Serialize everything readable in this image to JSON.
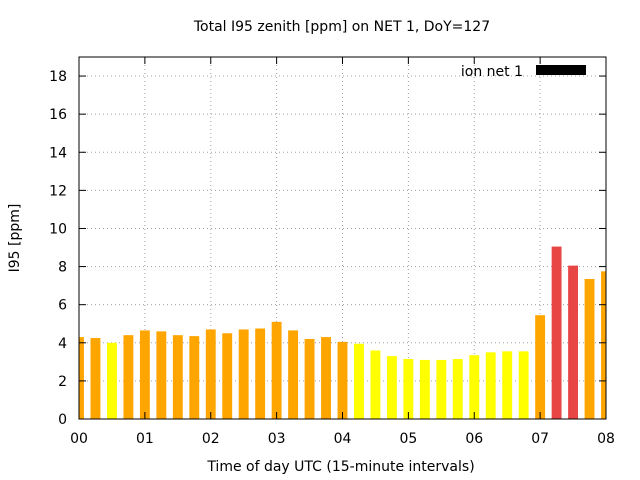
{
  "chart_data": {
    "type": "bar",
    "title": "Total I95 zenith [ppm] on NET 1, DoY=127",
    "xlabel": "Time of day UTC (15-minute intervals)",
    "ylabel": "I95 [ppm]",
    "xlim": [
      0,
      8
    ],
    "ylim": [
      0,
      19
    ],
    "x_ticks": [
      "00",
      "01",
      "02",
      "03",
      "04",
      "05",
      "06",
      "07",
      "08"
    ],
    "y_ticks": [
      "0",
      "2",
      "4",
      "6",
      "8",
      "10",
      "12",
      "14",
      "16",
      "18"
    ],
    "grid": true,
    "legend": {
      "placement": "top-right",
      "entries": [
        {
          "name": "ion net 1",
          "color": "#000000"
        }
      ]
    },
    "series": [
      {
        "name": "ion net 1",
        "x": [
          0.0,
          0.25,
          0.5,
          0.75,
          1.0,
          1.25,
          1.5,
          1.75,
          2.0,
          2.25,
          2.5,
          2.75,
          3.0,
          3.25,
          3.5,
          3.75,
          4.0,
          4.25,
          4.5,
          4.75,
          5.0,
          5.25,
          5.5,
          5.75,
          6.0,
          6.25,
          6.5,
          6.75,
          7.0,
          7.25,
          7.5,
          7.75,
          8.0
        ],
        "values": [
          4.3,
          4.25,
          4.0,
          4.4,
          4.65,
          4.6,
          4.4,
          4.35,
          4.7,
          4.5,
          4.7,
          4.75,
          5.1,
          4.65,
          4.2,
          4.3,
          4.05,
          3.95,
          3.6,
          3.3,
          3.15,
          3.1,
          3.1,
          3.15,
          3.35,
          3.5,
          3.55,
          3.55,
          5.45,
          9.05,
          8.05,
          7.35,
          7.75
        ],
        "colors": [
          "#FFA500",
          "#FFA500",
          "#FFFF00",
          "#FFA500",
          "#FFA500",
          "#FFA500",
          "#FFA500",
          "#FFA500",
          "#FFA500",
          "#FFA500",
          "#FFA500",
          "#FFA500",
          "#FFA500",
          "#FFA500",
          "#FFA500",
          "#FFA500",
          "#FFA500",
          "#FFFF00",
          "#FFFF00",
          "#FFFF00",
          "#FFFF00",
          "#FFFF00",
          "#FFFF00",
          "#FFFF00",
          "#FFFF00",
          "#FFFF00",
          "#FFFF00",
          "#FFFF00",
          "#FFA500",
          "#E84545",
          "#E84545",
          "#FFA500",
          "#FFA500"
        ]
      }
    ]
  }
}
